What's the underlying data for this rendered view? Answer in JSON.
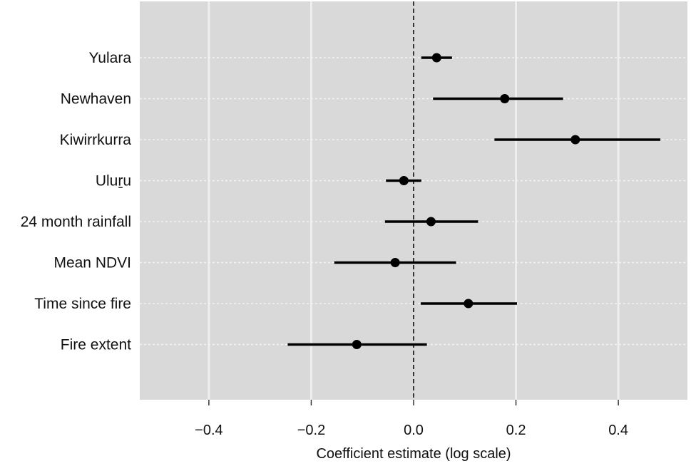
{
  "chart_data": {
    "type": "forest",
    "xlabel": "Coefficient estimate (log scale)",
    "ylabel": "",
    "title": "",
    "xlim": [
      -0.535,
      0.535
    ],
    "x_ticks": [
      -0.4,
      -0.2,
      0.0,
      0.2,
      0.4
    ],
    "x_tick_labels": [
      "−0.4",
      "−0.2",
      "0.0",
      "0.2",
      "0.4"
    ],
    "reference_line": 0,
    "grid": true,
    "colors": {
      "panel": "#d9d9d9",
      "grid_major": "#eeeeee",
      "grid_minor_dotted": "#f3f3f3",
      "point": "#000000",
      "reference_line": "#000000"
    },
    "categories": [
      "Yulara",
      "Newhaven",
      "Kiwirrkurra",
      "Uluṟu",
      "24 month rainfall",
      "Mean NDVI",
      "Time since fire",
      "Fire extent"
    ],
    "estimates": [
      0.045,
      0.178,
      0.316,
      -0.019,
      0.034,
      -0.036,
      0.107,
      -0.111
    ],
    "lower": [
      0.015,
      0.038,
      0.158,
      -0.054,
      -0.056,
      -0.155,
      0.014,
      -0.246
    ],
    "upper": [
      0.075,
      0.292,
      0.482,
      0.015,
      0.126,
      0.083,
      0.202,
      0.026
    ]
  }
}
